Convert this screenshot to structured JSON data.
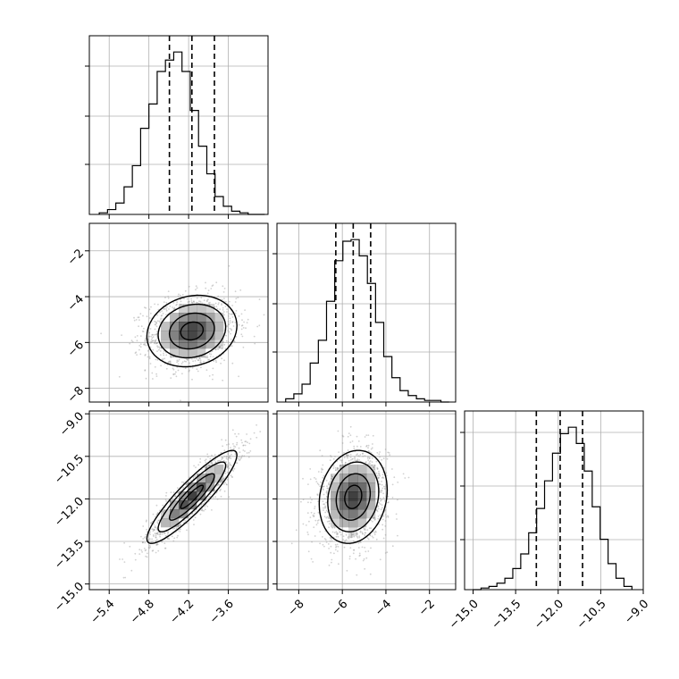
{
  "chart_data": {
    "type": "corner",
    "parameters": [
      "",
      "",
      ""
    ],
    "hist_bins": 20,
    "panels": [
      {
        "id": "hist-p1",
        "kind": "hist",
        "row": 0,
        "col": 0,
        "xlim": [
          -5.7,
          -3.0
        ],
        "bin_edges_start": -5.55,
        "bin_width": 0.125,
        "counts": [
          1,
          3,
          7,
          17,
          30,
          53,
          68,
          88,
          95,
          100,
          88,
          64,
          42,
          25,
          11,
          5,
          2,
          1,
          0,
          0
        ],
        "quantiles": [
          -4.49,
          -4.15,
          -3.81
        ],
        "xticks": [
          -5.4,
          -4.8,
          -4.2,
          -3.6
        ],
        "yticks_frac": [
          0.28,
          0.55,
          0.83
        ]
      },
      {
        "id": "hist-p2",
        "kind": "hist",
        "row": 1,
        "col": 1,
        "xlim": [
          -9.0,
          -0.8
        ],
        "bin_edges_start": -8.6,
        "bin_width": 0.375,
        "counts": [
          2,
          5,
          11,
          24,
          38,
          62,
          87,
          99,
          100,
          90,
          73,
          49,
          28,
          15,
          7,
          4,
          2,
          1,
          1,
          0
        ],
        "quantiles": [
          -6.3,
          -5.5,
          -4.7
        ],
        "xticks": [
          -8,
          -6,
          -4,
          -2
        ],
        "yticks_frac": [
          0.28,
          0.55,
          0.83
        ]
      },
      {
        "id": "hist-p3",
        "kind": "hist",
        "row": 2,
        "col": 2,
        "xlim": [
          -15.3,
          -9.0
        ],
        "bin_edges_start": -15.0,
        "bin_width": 0.28,
        "counts": [
          0,
          1,
          2,
          4,
          7,
          13,
          22,
          35,
          50,
          67,
          84,
          96,
          100,
          90,
          73,
          51,
          31,
          16,
          7,
          2
        ],
        "quantiles": [
          -12.77,
          -11.93,
          -11.14
        ],
        "xticks": [
          -15.0,
          -13.5,
          -12.0,
          -10.5,
          -9.0
        ],
        "yticks_frac": [
          0.28,
          0.58,
          0.88
        ]
      },
      {
        "id": "joint-p1-p2",
        "kind": "joint",
        "row": 1,
        "col": 0,
        "xlim": [
          -5.7,
          -3.0
        ],
        "ylim": [
          -8.6,
          -0.8
        ],
        "mean": [
          -4.15,
          -5.5
        ],
        "sd": [
          0.34,
          0.78
        ],
        "corr": 0.15,
        "xticks": [
          -5.4,
          -4.8,
          -4.2,
          -3.6
        ],
        "yticks": [
          -8,
          -6,
          -4,
          -2
        ]
      },
      {
        "id": "joint-p1-p3",
        "kind": "joint",
        "row": 2,
        "col": 0,
        "xlim": [
          -5.7,
          -3.0
        ],
        "ylim": [
          -15.2,
          -8.9
        ],
        "mean": [
          -4.15,
          -11.93
        ],
        "sd": [
          0.34,
          0.82
        ],
        "corr": 0.9,
        "xticks": [
          -5.4,
          -4.8,
          -4.2,
          -3.6
        ],
        "yticks": [
          -15.0,
          -13.5,
          -12.0,
          -10.5,
          -9.0
        ]
      },
      {
        "id": "joint-p2-p3",
        "kind": "joint",
        "row": 2,
        "col": 1,
        "xlim": [
          -9.0,
          -0.8
        ],
        "ylim": [
          -15.2,
          -8.9
        ],
        "mean": [
          -5.5,
          -11.93
        ],
        "sd": [
          0.78,
          0.82
        ],
        "corr": 0.15,
        "xticks": [
          -8,
          -6,
          -4,
          -2
        ],
        "yticks": [
          -15.0,
          -13.5,
          -12.0,
          -10.5,
          -9.0
        ]
      }
    ],
    "x_tick_labels": {
      "col0": [
        "−5.4",
        "−4.8",
        "−4.2",
        "−3.6"
      ],
      "col1": [
        "−8",
        "−6",
        "−4",
        "−2"
      ],
      "col2": [
        "−15.0",
        "−13.5",
        "−12.0",
        "−10.5",
        "−9.0"
      ]
    },
    "y_tick_labels": {
      "row1": [
        "−8",
        "−6",
        "−4",
        "−2"
      ],
      "row2": [
        "−15.0",
        "−13.5",
        "−12.0",
        "−10.5",
        "−9.0"
      ]
    },
    "grid": true,
    "colors": {
      "line": "#000000",
      "grid": "#b0b0b0",
      "scatter": "#9a9a9a",
      "density": "#000000"
    }
  }
}
